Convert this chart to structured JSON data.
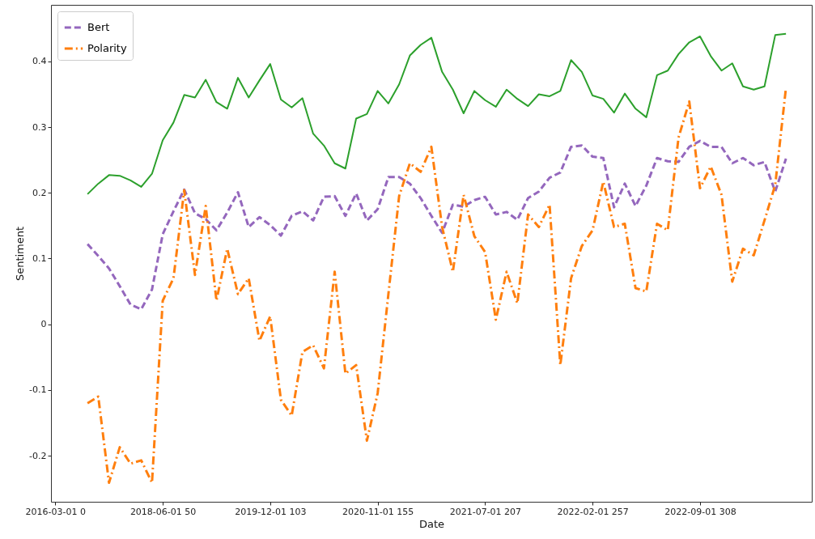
{
  "chart_data": {
    "type": "line",
    "xlabel": "Date",
    "ylabel": "Sentiment",
    "legend": "top left",
    "grid": false,
    "categories": [
      "2016-03-01 0",
      null,
      null,
      null,
      null,
      null,
      null,
      null,
      null,
      null,
      "2018-06-01 50",
      null,
      null,
      null,
      null,
      null,
      null,
      null,
      null,
      null,
      "2019-12-01 103",
      null,
      null,
      null,
      null,
      null,
      null,
      null,
      null,
      null,
      "2020-11-01 155",
      null,
      null,
      null,
      null,
      null,
      null,
      null,
      null,
      null,
      "2021-07-01 207",
      null,
      null,
      null,
      null,
      null,
      null,
      null,
      null,
      null,
      "2022-02-01 257",
      null,
      null,
      null,
      null,
      null,
      null,
      null,
      null,
      null,
      "2022-09-01 308",
      null,
      null,
      null,
      null,
      null,
      null,
      null,
      null,
      null,
      null
    ],
    "ylim": [
      -0.27,
      0.486
    ],
    "yticks": [
      -0.2,
      -0.1,
      0.0,
      0.1,
      0.2,
      0.3,
      0.4
    ],
    "series": [
      {
        "color": "#2ca02c",
        "line_style": "solid",
        "values": [
          null,
          null,
          null,
          0.198,
          0.214,
          0.227,
          0.226,
          0.219,
          0.209,
          0.229,
          0.28,
          0.307,
          0.349,
          0.345,
          0.372,
          0.338,
          0.328,
          0.375,
          0.345,
          0.371,
          0.396,
          0.342,
          0.33,
          0.344,
          0.29,
          0.272,
          0.245,
          0.237,
          0.313,
          0.32,
          0.355,
          0.336,
          0.365,
          0.409,
          0.425,
          0.436,
          0.384,
          0.357,
          0.321,
          0.355,
          0.341,
          0.331,
          0.357,
          0.343,
          0.332,
          0.35,
          0.347,
          0.355,
          0.402,
          0.384,
          0.348,
          0.343,
          0.322,
          0.351,
          0.328,
          0.315,
          0.379,
          0.386,
          0.411,
          0.429,
          0.438,
          0.408,
          0.386,
          0.397,
          0.362,
          0.357,
          0.362,
          0.44,
          0.442,
          null,
          null
        ]
      },
      {
        "name": "Bert",
        "color": "#9467bd",
        "line_style": "dashed",
        "values": [
          null,
          null,
          null,
          0.122,
          0.104,
          0.085,
          0.058,
          0.03,
          0.023,
          0.053,
          0.137,
          0.172,
          0.205,
          0.169,
          0.16,
          0.143,
          0.17,
          0.201,
          0.148,
          0.163,
          0.151,
          0.135,
          0.165,
          0.172,
          0.158,
          0.194,
          0.195,
          0.165,
          0.199,
          0.158,
          0.175,
          0.224,
          0.224,
          0.214,
          0.192,
          0.165,
          0.139,
          0.182,
          0.179,
          0.189,
          0.194,
          0.167,
          0.171,
          0.159,
          0.192,
          0.202,
          0.223,
          0.231,
          0.27,
          0.272,
          0.255,
          0.253,
          0.178,
          0.214,
          0.18,
          0.211,
          0.253,
          0.248,
          0.247,
          0.27,
          0.279,
          0.27,
          0.27,
          0.245,
          0.253,
          0.242,
          0.247,
          0.202,
          0.252,
          null,
          null
        ]
      },
      {
        "name": "Polarity",
        "color": "#ff7f0e",
        "line_style": "dashdot",
        "values": [
          null,
          null,
          null,
          -0.12,
          -0.11,
          -0.241,
          -0.187,
          -0.212,
          -0.207,
          -0.241,
          0.036,
          0.07,
          0.204,
          0.075,
          0.18,
          0.036,
          0.115,
          0.046,
          0.07,
          -0.025,
          0.012,
          -0.115,
          -0.139,
          -0.042,
          -0.032,
          -0.067,
          0.08,
          -0.075,
          -0.062,
          -0.177,
          -0.105,
          0.046,
          0.195,
          0.245,
          0.232,
          0.27,
          0.148,
          0.08,
          0.197,
          0.134,
          0.11,
          0.007,
          0.08,
          0.032,
          0.167,
          0.148,
          0.182,
          -0.062,
          0.07,
          0.119,
          0.143,
          0.217,
          0.148,
          0.153,
          0.055,
          0.05,
          0.153,
          0.143,
          0.284,
          0.339,
          0.207,
          0.24,
          0.197,
          0.065,
          0.115,
          0.105,
          0.158,
          0.212,
          0.36,
          null,
          null
        ]
      }
    ]
  }
}
